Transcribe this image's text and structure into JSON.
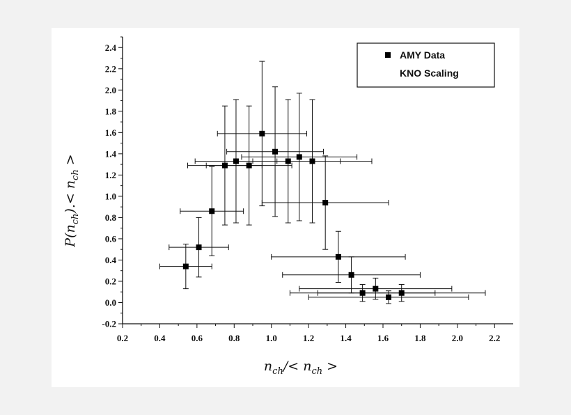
{
  "chart_data": {
    "type": "scatter",
    "title": "",
    "xlabel": "n_ch/< n_ch >",
    "ylabel": "P(n_ch).< n_ch >",
    "xlim": [
      0.2,
      2.3
    ],
    "ylim": [
      -0.2,
      2.5
    ],
    "xticks": [
      "0.2",
      "0.4",
      "0.6",
      "0.8",
      "1.0",
      "1.2",
      "1.4",
      "1.6",
      "1.8",
      "2.0",
      "2.2"
    ],
    "yticks": [
      "-0.2",
      "0.0",
      "0.2",
      "0.4",
      "0.6",
      "0.8",
      "1.0",
      "1.2",
      "1.4",
      "1.6",
      "1.8",
      "2.0",
      "2.2",
      "2.4"
    ],
    "grid": false,
    "legend_position": "top-right",
    "legend": [
      "AMY Data",
      "KNO Scaling"
    ],
    "series": [
      {
        "name": "AMY Data",
        "marker": "square",
        "color": "#000000",
        "points": [
          {
            "x": 0.54,
            "y": 0.34,
            "xerr": 0.14,
            "yerr": 0.21
          },
          {
            "x": 0.61,
            "y": 0.52,
            "xerr": 0.16,
            "yerr": 0.28
          },
          {
            "x": 0.68,
            "y": 0.86,
            "xerr": 0.17,
            "yerr": 0.42
          },
          {
            "x": 0.75,
            "y": 1.29,
            "xerr": 0.2,
            "yerr": 0.56
          },
          {
            "x": 0.81,
            "y": 1.33,
            "xerr": 0.22,
            "yerr": 0.58
          },
          {
            "x": 0.88,
            "y": 1.29,
            "xerr": 0.23,
            "yerr": 0.56
          },
          {
            "x": 0.95,
            "y": 1.59,
            "xerr": 0.24,
            "yerr": 0.68
          },
          {
            "x": 1.02,
            "y": 1.42,
            "xerr": 0.26,
            "yerr": 0.61
          },
          {
            "x": 1.09,
            "y": 1.33,
            "xerr": 0.28,
            "yerr": 0.58
          },
          {
            "x": 1.15,
            "y": 1.37,
            "xerr": 0.31,
            "yerr": 0.6
          },
          {
            "x": 1.22,
            "y": 1.33,
            "xerr": 0.32,
            "yerr": 0.58
          },
          {
            "x": 1.29,
            "y": 0.94,
            "xerr": 0.34,
            "yerr": 0.44
          },
          {
            "x": 1.36,
            "y": 0.43,
            "xerr": 0.36,
            "yerr": 0.24
          },
          {
            "x": 1.43,
            "y": 0.26,
            "xerr": 0.37,
            "yerr": 0.17
          },
          {
            "x": 1.49,
            "y": 0.09,
            "xerr": 0.39,
            "yerr": 0.08
          },
          {
            "x": 1.56,
            "y": 0.13,
            "xerr": 0.41,
            "yerr": 0.1
          },
          {
            "x": 1.63,
            "y": 0.05,
            "xerr": 0.43,
            "yerr": 0.06
          },
          {
            "x": 1.7,
            "y": 0.09,
            "xerr": 0.45,
            "yerr": 0.08
          }
        ]
      }
    ]
  }
}
